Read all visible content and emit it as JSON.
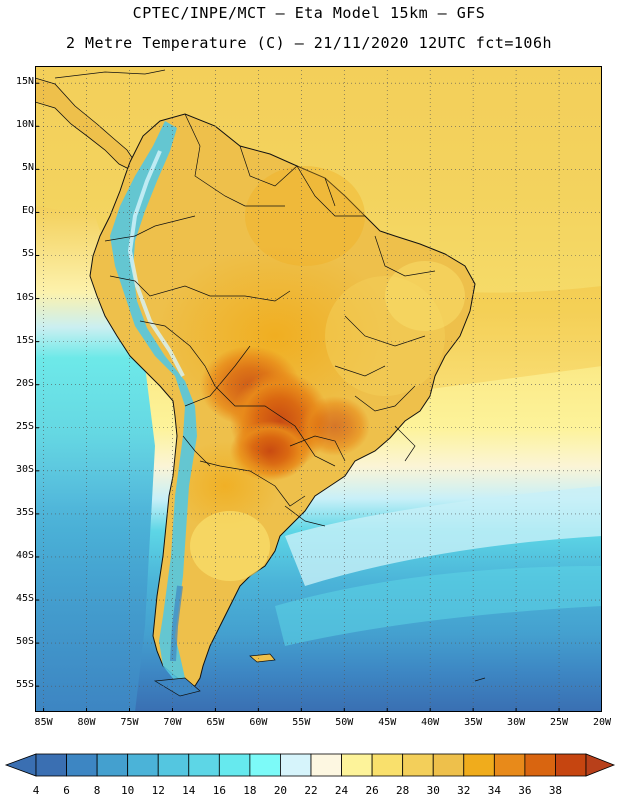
{
  "header": {
    "line1": "CPTEC/INPE/MCT –  Eta Model 15km – GFS",
    "line2": "2 Metre Temperature (C) – 21/11/2020 12UTC fct=106h"
  },
  "axes": {
    "lat_labels": [
      "15N",
      "10N",
      "5N",
      "EQ",
      "5S",
      "10S",
      "15S",
      "20S",
      "25S",
      "30S",
      "35S",
      "40S",
      "45S",
      "50S",
      "55S"
    ],
    "lat_values": [
      15,
      10,
      5,
      0,
      -5,
      -10,
      -15,
      -20,
      -25,
      -30,
      -35,
      -40,
      -45,
      -50,
      -55
    ],
    "lon_labels": [
      "85W",
      "80W",
      "75W",
      "70W",
      "65W",
      "60W",
      "55W",
      "50W",
      "45W",
      "40W",
      "35W",
      "30W",
      "25W",
      "20W"
    ],
    "lon_values": [
      -85,
      -80,
      -75,
      -70,
      -65,
      -60,
      -55,
      -50,
      -45,
      -40,
      -35,
      -30,
      -25,
      -20
    ],
    "lat_range": [
      -58,
      17
    ],
    "lon_range": [
      -86,
      -20
    ]
  },
  "colorbar": {
    "labels": [
      "4",
      "6",
      "8",
      "10",
      "12",
      "14",
      "16",
      "18",
      "20",
      "22",
      "24",
      "26",
      "28",
      "30",
      "32",
      "34",
      "36",
      "38"
    ],
    "colors": [
      "#3a6fb2",
      "#3d86c3",
      "#44a0cf",
      "#4bb3d8",
      "#54c6e0",
      "#5dd6e6",
      "#66e9ee",
      "#7cfaf8",
      "#d6f4fb",
      "#fdf7e1",
      "#fdf39a",
      "#f9e06c",
      "#f3cf5a",
      "#eec04b",
      "#f0ac1c",
      "#e88a1a",
      "#d96510",
      "#c64510"
    ],
    "under_color": "#3a6fb2",
    "over_color": "#b8401a"
  },
  "colors": {
    "ocean_atlantic_north": "#f3cf5a",
    "ocean_south": "#3d86c3",
    "land_base": "#eec04b",
    "hot_core": "#c64510",
    "andes": "#54c6e0",
    "grid": "#555555"
  }
}
